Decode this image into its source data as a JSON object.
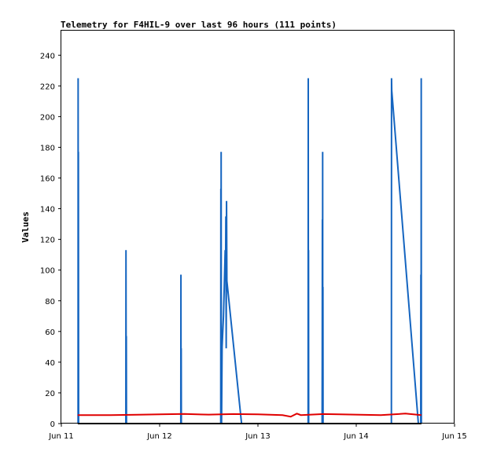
{
  "chart_data": {
    "type": "line",
    "title": "Telemetry for F4HIL-9 over last 96 hours (111 points)",
    "xlabel": "",
    "ylabel": "Values",
    "xlim": [
      "2021-06-11 00:00",
      "2021-06-15 00:00"
    ],
    "ylim": [
      0,
      256
    ],
    "x_ticks": [
      "Jun 11",
      "Jun 12",
      "Jun 13",
      "Jun 14",
      "Jun 15"
    ],
    "y_ticks": [
      0,
      20,
      40,
      60,
      80,
      100,
      120,
      140,
      160,
      180,
      200,
      220,
      240
    ],
    "grid": false,
    "legend": "none",
    "series": [
      {
        "color": "#1565c0",
        "points": [
          [
            "2021-06-11 04:05",
            0
          ],
          [
            "2021-06-11 04:06",
            225
          ],
          [
            "2021-06-11 04:09",
            0
          ],
          [
            "2021-06-11 04:10",
            177
          ],
          [
            "2021-06-11 04:13",
            0
          ],
          [
            "2021-06-11 15:45",
            0
          ],
          [
            "2021-06-11 15:47",
            113
          ],
          [
            "2021-06-11 15:50",
            0
          ],
          [
            "2021-06-11 15:52",
            57
          ],
          [
            "2021-06-11 15:54",
            0
          ],
          [
            "2021-06-12 05:10",
            0
          ],
          [
            "2021-06-12 05:12",
            97
          ],
          [
            "2021-06-12 05:14",
            0
          ],
          [
            "2021-06-12 05:16",
            49
          ],
          [
            "2021-06-12 05:18",
            0
          ],
          [
            "2021-06-12 14:55",
            0
          ],
          [
            "2021-06-12 14:57",
            153
          ],
          [
            "2021-06-12 14:59",
            0
          ],
          [
            "2021-06-12 15:01",
            177
          ],
          [
            "2021-06-12 15:03",
            15
          ],
          [
            "2021-06-12 15:05",
            32
          ],
          [
            "2021-06-12 15:07",
            0
          ],
          [
            "2021-06-12 15:15",
            50
          ],
          [
            "2021-06-12 15:35",
            70
          ],
          [
            "2021-06-12 15:50",
            95
          ],
          [
            "2021-06-12 16:00",
            113
          ],
          [
            "2021-06-12 16:05",
            93
          ],
          [
            "2021-06-12 16:10",
            135
          ],
          [
            "2021-06-12 16:15",
            49
          ],
          [
            "2021-06-12 16:20",
            145
          ],
          [
            "2021-06-12 16:25",
            93
          ],
          [
            "2021-06-12 20:00",
            0
          ],
          [
            "2021-06-13 12:15",
            0
          ],
          [
            "2021-06-13 12:17",
            225
          ],
          [
            "2021-06-13 12:19",
            0
          ],
          [
            "2021-06-13 12:21",
            113
          ],
          [
            "2021-06-13 12:23",
            0
          ],
          [
            "2021-06-13 15:40",
            0
          ],
          [
            "2021-06-13 15:42",
            45
          ],
          [
            "2021-06-13 15:44",
            133
          ],
          [
            "2021-06-13 15:46",
            0
          ],
          [
            "2021-06-13 15:48",
            177
          ],
          [
            "2021-06-13 15:50",
            0
          ],
          [
            "2021-06-13 15:52",
            89
          ],
          [
            "2021-06-13 15:54",
            0
          ],
          [
            "2021-06-14 08:35",
            0
          ],
          [
            "2021-06-14 08:37",
            225
          ],
          [
            "2021-06-14 08:40",
            217
          ],
          [
            "2021-06-14 15:10",
            0
          ],
          [
            "2021-06-14 15:45",
            0
          ],
          [
            "2021-06-14 15:47",
            97
          ],
          [
            "2021-06-14 15:50",
            0
          ],
          [
            "2021-06-14 15:52",
            225
          ],
          [
            "2021-06-14 15:54",
            0
          ]
        ]
      },
      {
        "color": "#e00000",
        "points": [
          [
            "2021-06-11 04:00",
            5.5
          ],
          [
            "2021-06-11 12:00",
            5.5
          ],
          [
            "2021-06-11 20:00",
            5.8
          ],
          [
            "2021-06-12 00:00",
            6
          ],
          [
            "2021-06-12 06:00",
            6.3
          ],
          [
            "2021-06-12 12:00",
            5.8
          ],
          [
            "2021-06-12 18:00",
            6.2
          ],
          [
            "2021-06-13 00:00",
            6
          ],
          [
            "2021-06-13 06:00",
            5.5
          ],
          [
            "2021-06-13 08:00",
            4.5
          ],
          [
            "2021-06-13 09:30",
            6.5
          ],
          [
            "2021-06-13 10:30",
            5.5
          ],
          [
            "2021-06-13 16:00",
            6.2
          ],
          [
            "2021-06-13 20:00",
            6
          ],
          [
            "2021-06-14 06:00",
            5.5
          ],
          [
            "2021-06-14 12:00",
            6.5
          ],
          [
            "2021-06-14 15:54",
            5.5
          ]
        ]
      },
      {
        "color": "#000000",
        "points": [
          [
            "2021-06-11 04:00",
            0
          ],
          [
            "2021-06-14 15:54",
            0
          ]
        ]
      }
    ]
  }
}
